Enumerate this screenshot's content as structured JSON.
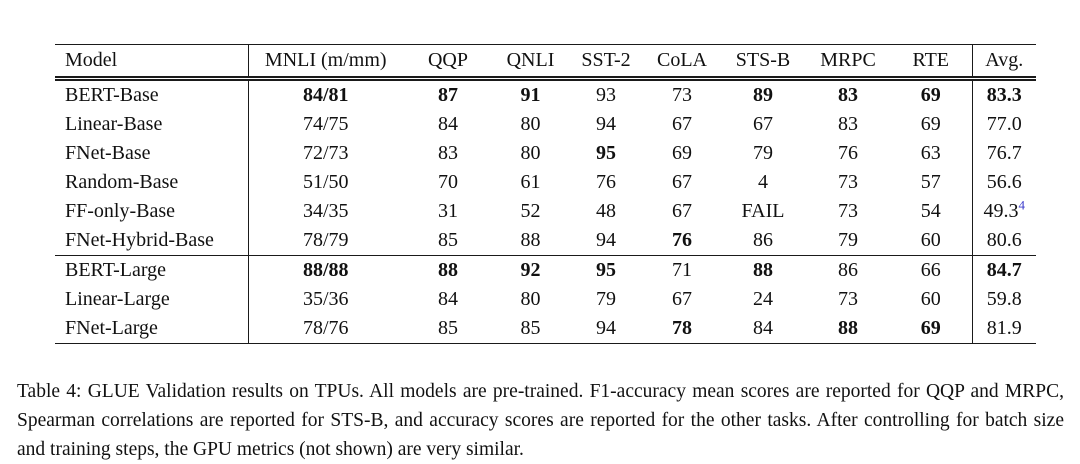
{
  "page": {
    "background_color": "#ffffff",
    "text_color": "#111111",
    "footnote_color": "#3c3ccb"
  },
  "table": {
    "columns": [
      "Model",
      "MNLI (m/mm)",
      "QQP",
      "QNLI",
      "SST-2",
      "CoLA",
      "STS-B",
      "MRPC",
      "RTE",
      "Avg."
    ],
    "rows": [
      {
        "model": "BERT-Base",
        "values": [
          "84/81",
          "87",
          "91",
          "93",
          "73",
          "89",
          "83",
          "69",
          "83.3"
        ],
        "bold": [
          true,
          true,
          true,
          false,
          false,
          true,
          true,
          true,
          true
        ],
        "section_break_after": false
      },
      {
        "model": "Linear-Base",
        "values": [
          "74/75",
          "84",
          "80",
          "94",
          "67",
          "67",
          "83",
          "69",
          "77.0"
        ],
        "bold": [
          false,
          false,
          false,
          false,
          false,
          false,
          false,
          false,
          false
        ],
        "section_break_after": false
      },
      {
        "model": "FNet-Base",
        "values": [
          "72/73",
          "83",
          "80",
          "95",
          "69",
          "79",
          "76",
          "63",
          "76.7"
        ],
        "bold": [
          false,
          false,
          false,
          true,
          false,
          false,
          false,
          false,
          false
        ],
        "section_break_after": false
      },
      {
        "model": "Random-Base",
        "values": [
          "51/50",
          "70",
          "61",
          "76",
          "67",
          "4",
          "73",
          "57",
          "56.6"
        ],
        "bold": [
          false,
          false,
          false,
          false,
          false,
          false,
          false,
          false,
          false
        ],
        "section_break_after": false
      },
      {
        "model": "FF-only-Base",
        "values": [
          "34/35",
          "31",
          "52",
          "48",
          "67",
          "FAIL",
          "73",
          "54",
          "49.3"
        ],
        "bold": [
          false,
          false,
          false,
          false,
          false,
          false,
          false,
          false,
          false
        ],
        "avg_superscript": "4",
        "section_break_after": false
      },
      {
        "model": "FNet-Hybrid-Base",
        "values": [
          "78/79",
          "85",
          "88",
          "94",
          "76",
          "86",
          "79",
          "60",
          "80.6"
        ],
        "bold": [
          false,
          false,
          false,
          false,
          true,
          false,
          false,
          false,
          false
        ],
        "section_break_after": true
      },
      {
        "model": "BERT-Large",
        "values": [
          "88/88",
          "88",
          "92",
          "95",
          "71",
          "88",
          "86",
          "66",
          "84.7"
        ],
        "bold": [
          true,
          true,
          true,
          true,
          false,
          true,
          false,
          false,
          true
        ],
        "section_break_after": false
      },
      {
        "model": "Linear-Large",
        "values": [
          "35/36",
          "84",
          "80",
          "79",
          "67",
          "24",
          "73",
          "60",
          "59.8"
        ],
        "bold": [
          false,
          false,
          false,
          false,
          false,
          false,
          false,
          false,
          false
        ],
        "section_break_after": false
      },
      {
        "model": "FNet-Large",
        "values": [
          "78/76",
          "85",
          "85",
          "94",
          "78",
          "84",
          "88",
          "69",
          "81.9"
        ],
        "bold": [
          false,
          false,
          false,
          false,
          true,
          false,
          true,
          true,
          false
        ],
        "section_break_after": false
      }
    ]
  },
  "caption": {
    "text": "Table 4: GLUE Validation results on TPUs. All models are pre-trained. F1-accuracy mean scores are reported for QQP and MRPC, Spearman correlations are reported for STS-B, and accuracy scores are reported for the other tasks. After controlling for batch size and training steps, the GPU metrics (not shown) are very similar."
  }
}
